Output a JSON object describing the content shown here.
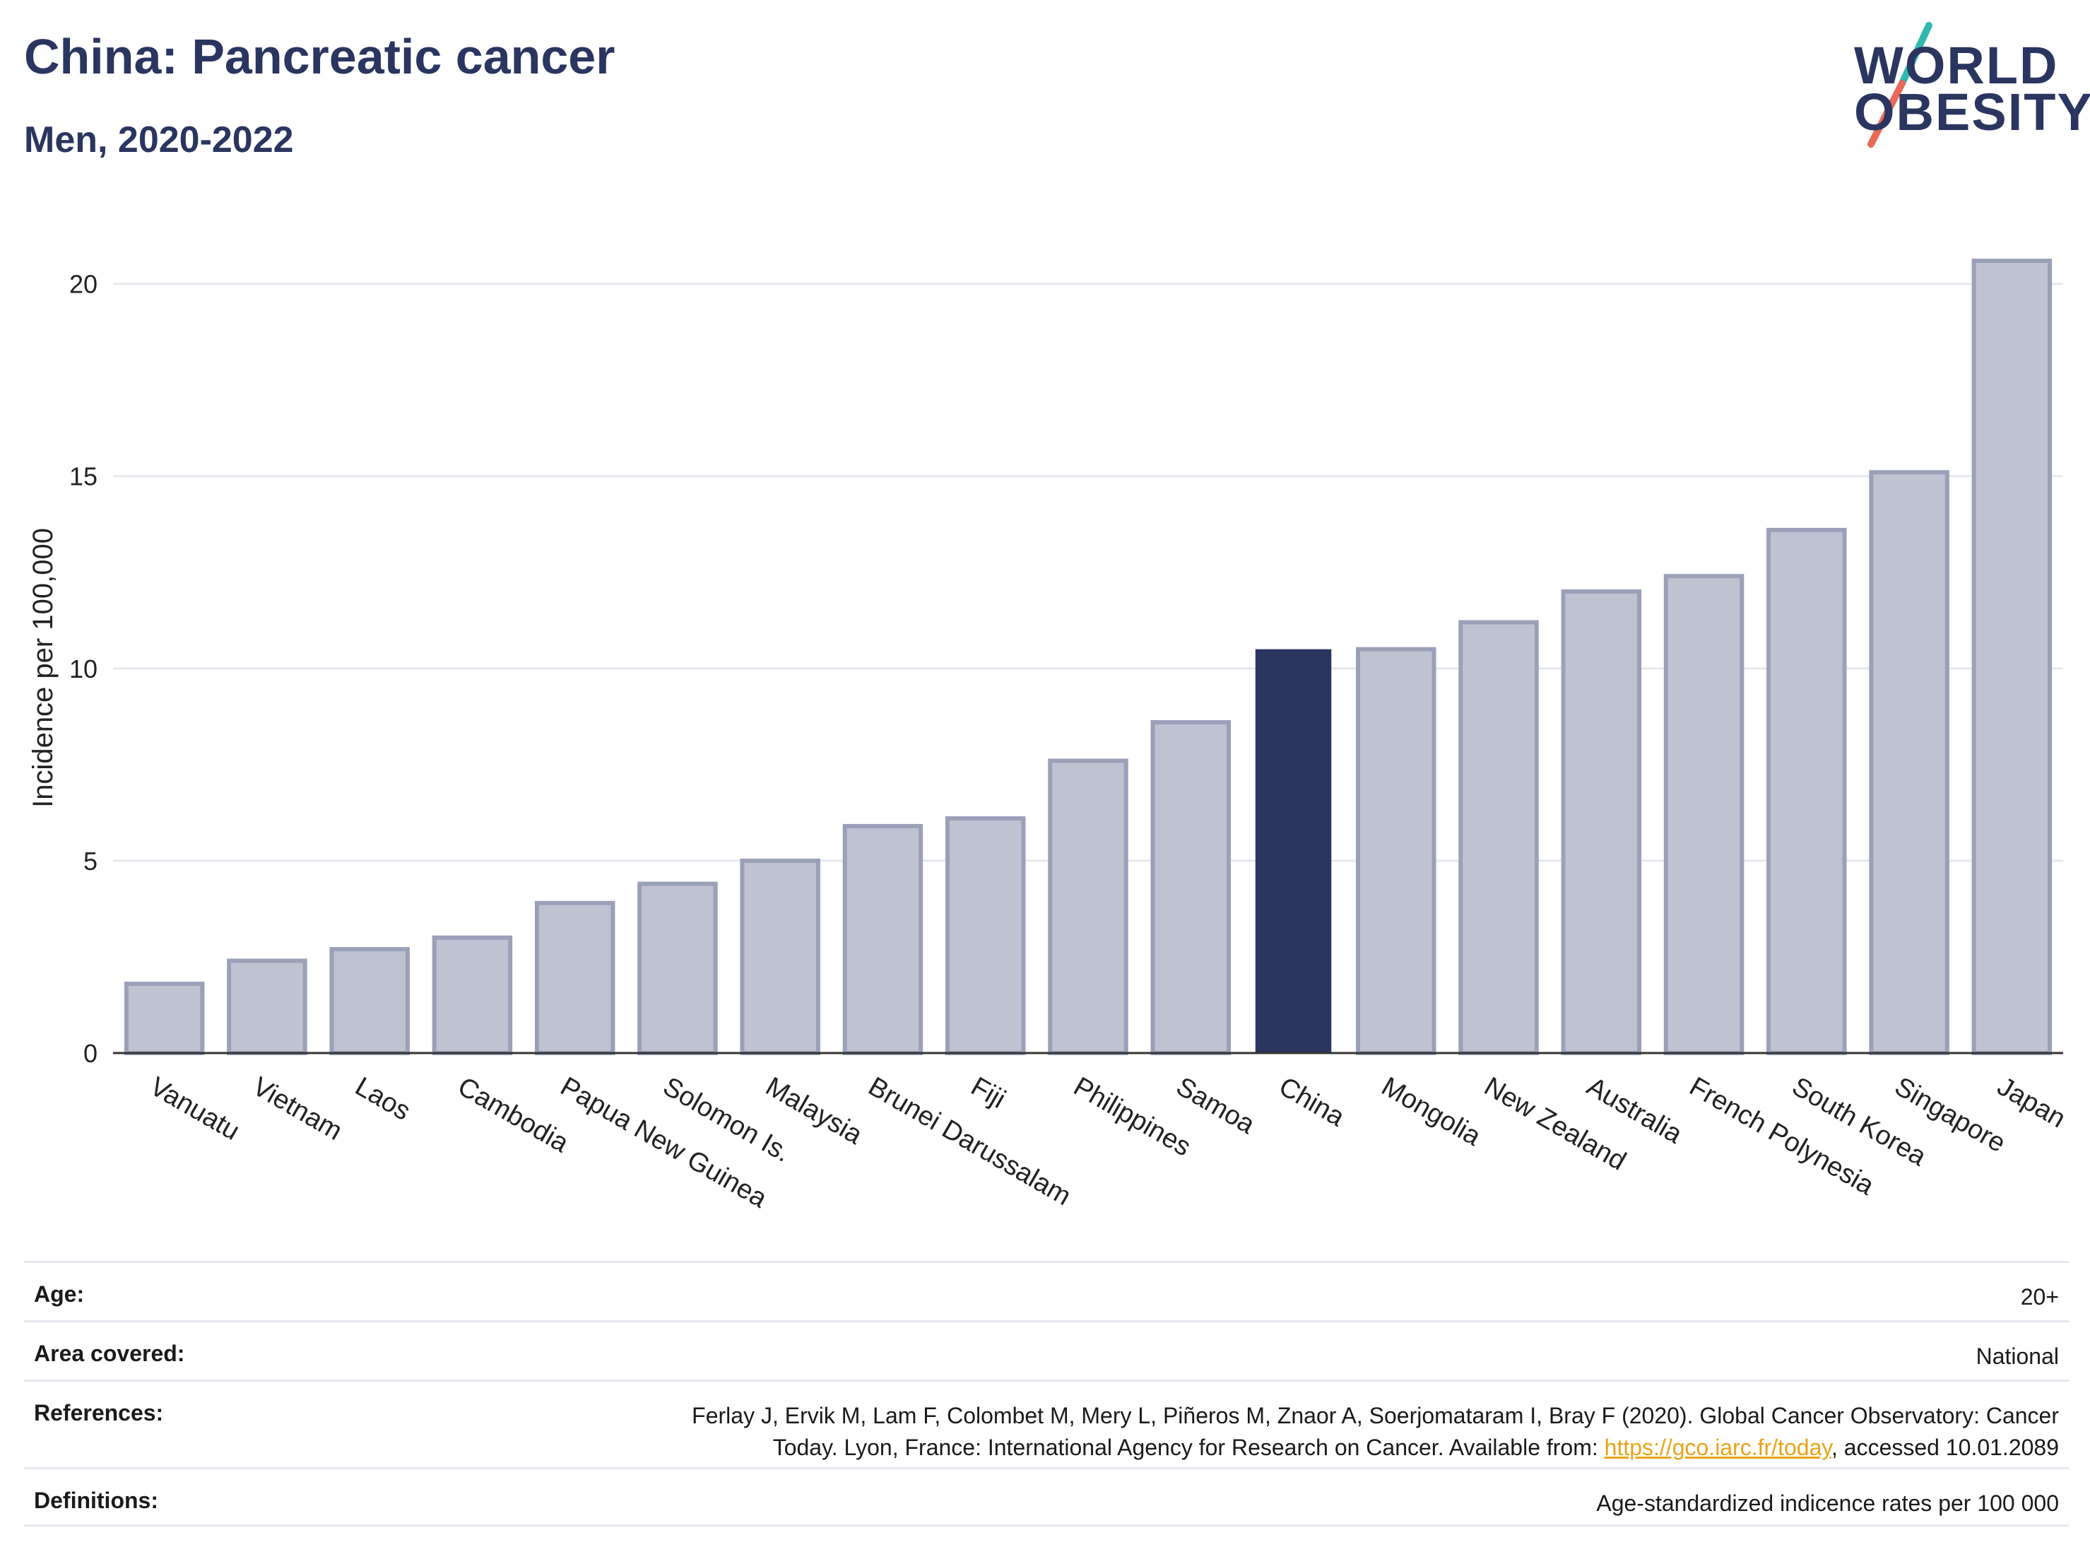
{
  "header": {
    "title": "China: Pancreatic cancer",
    "subtitle": "Men, 2020-2022"
  },
  "logo": {
    "line1": "WORLD",
    "line2": "OBESITY",
    "slash_colors": [
      "#2fb9ae",
      "#e8685a"
    ]
  },
  "colors": {
    "highlight": "#2a3560",
    "bar_fill": "#bfc3d1",
    "bar_stroke": "#9aa0b8",
    "grid": "#e6e8ef",
    "axis": "#333333"
  },
  "chart_data": {
    "type": "bar",
    "title": "China: Pancreatic cancer",
    "subtitle": "Men, 2020-2022",
    "ylabel": "Incidence per 100,000",
    "xlabel": "",
    "ylim": [
      0,
      21.5
    ],
    "yticks": [
      0,
      5,
      10,
      15,
      20
    ],
    "grid": true,
    "highlight": "China",
    "categories": [
      "Vanuatu",
      "Vietnam",
      "Laos",
      "Cambodia",
      "Papua New Guinea",
      "Solomon Is.",
      "Malaysia",
      "Brunei Darussalam",
      "Fiji",
      "Philippines",
      "Samoa",
      "China",
      "Mongolia",
      "New Zealand",
      "Australia",
      "French Polynesia",
      "South Korea",
      "Singapore",
      "Japan"
    ],
    "values": [
      1.8,
      2.4,
      2.7,
      3.0,
      3.9,
      4.4,
      5.0,
      5.9,
      6.1,
      7.6,
      8.6,
      10.5,
      10.5,
      11.2,
      12.0,
      12.4,
      13.6,
      15.1,
      20.6
    ]
  },
  "info": {
    "age": {
      "label": "Age:",
      "value": "20+"
    },
    "area": {
      "label": "Area covered:",
      "value": "National"
    },
    "references": {
      "label": "References:",
      "text_line1": "Ferlay J, Ervik M, Lam F, Colombet M, Mery L, Piñeros M, Znaor A, Soerjomataram I, Bray F (2020). Global Cancer Observatory: Cancer",
      "text_line2_pre": "Today. Lyon, France: International Agency for Research on Cancer. Available from: ",
      "link": "https://gco.iarc.fr/today",
      "text_line2_post": ", accessed 10.01.2089"
    },
    "definitions": {
      "label": "Definitions:",
      "value": "Age-standardized indicence rates per 100 000"
    }
  }
}
